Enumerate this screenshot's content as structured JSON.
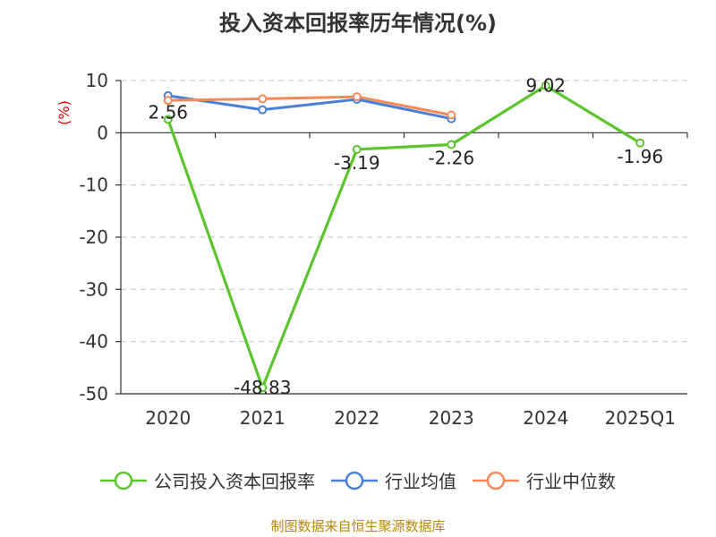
{
  "chart_data": {
    "type": "line",
    "title": "投入资本回报率历年情况(%)",
    "ylabel": "(%)",
    "xlabel": "",
    "categories": [
      "2020",
      "2021",
      "2022",
      "2023",
      "2024",
      "2025Q1"
    ],
    "ylim": [
      -50,
      10
    ],
    "yticks": [
      10,
      0,
      -10,
      -20,
      -30,
      -40,
      -50
    ],
    "grid": true,
    "legend_position": "bottom",
    "series": [
      {
        "name": "公司投入资本回报率",
        "color": "#5cc42e",
        "values": [
          2.56,
          -48.83,
          -3.19,
          -2.26,
          9.02,
          -1.96
        ],
        "labels": [
          "2.56",
          "-48.83",
          "-3.19",
          "-2.26",
          "9.02",
          "-1.96"
        ]
      },
      {
        "name": "行业均值",
        "color": "#4a7fd8",
        "values": [
          7.1,
          4.4,
          6.4,
          2.7,
          null,
          null
        ]
      },
      {
        "name": "行业中位数",
        "color": "#f4895a",
        "values": [
          6.2,
          6.5,
          6.9,
          3.4,
          null,
          null
        ]
      }
    ]
  },
  "source_note": "制图数据来自恒生聚源数据库",
  "colors": {
    "axis": "#333333",
    "grid": "#cccccc",
    "ylabel": "#e00000",
    "source": "#b8860b"
  }
}
